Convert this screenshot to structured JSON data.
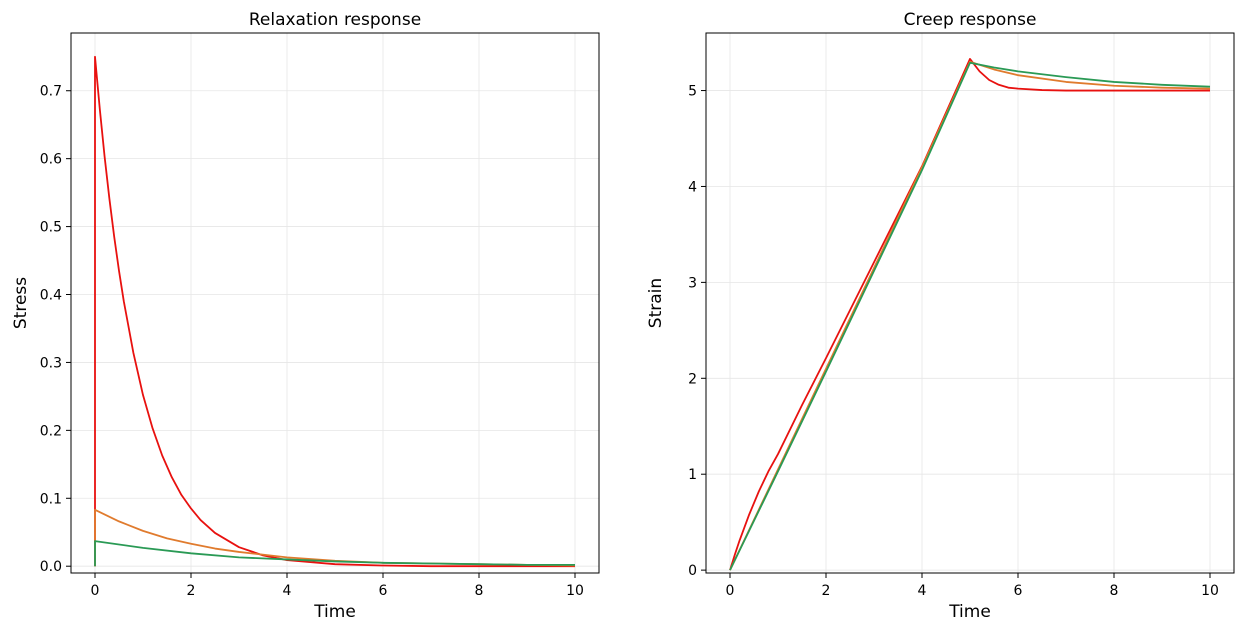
{
  "chart_data": [
    {
      "type": "line",
      "title": "Relaxation response",
      "xlabel": "Time",
      "ylabel": "Stress",
      "xlim": [
        -0.5,
        10.5
      ],
      "ylim": [
        -0.01,
        0.785
      ],
      "xticks": [
        0,
        2,
        4,
        6,
        8,
        10
      ],
      "yticks": [
        0.0,
        0.1,
        0.2,
        0.3,
        0.4,
        0.5,
        0.6,
        0.7
      ],
      "grid": true,
      "series": [
        {
          "color": "#e8110f",
          "x": [
            0,
            0,
            0.1,
            0.2,
            0.3,
            0.4,
            0.5,
            0.6,
            0.8,
            1.0,
            1.2,
            1.4,
            1.6,
            1.8,
            2.0,
            2.2,
            2.5,
            3.0,
            3.5,
            4.0,
            5.0,
            6.0,
            7.0,
            8.0,
            9.0,
            10.0
          ],
          "y": [
            0,
            0.75,
            0.673,
            0.603,
            0.541,
            0.485,
            0.435,
            0.39,
            0.314,
            0.252,
            0.203,
            0.163,
            0.131,
            0.105,
            0.085,
            0.068,
            0.049,
            0.028,
            0.016,
            0.009,
            0.003,
            0.001,
            0.0,
            0.0,
            0.0,
            0.0
          ]
        },
        {
          "color": "#e07b2e",
          "x": [
            0,
            0,
            0.5,
            1.0,
            1.5,
            2.0,
            2.5,
            3.0,
            4.0,
            5.0,
            6.0,
            7.0,
            8.0,
            9.0,
            10.0
          ],
          "y": [
            0,
            0.083,
            0.066,
            0.052,
            0.041,
            0.033,
            0.026,
            0.021,
            0.013,
            0.008,
            0.005,
            0.004,
            0.003,
            0.002,
            0.001
          ]
        },
        {
          "color": "#2a9a55",
          "x": [
            0,
            0,
            1.0,
            2.0,
            3.0,
            4.0,
            5.0,
            6.0,
            7.0,
            8.0,
            9.0,
            10.0
          ],
          "y": [
            0,
            0.037,
            0.027,
            0.019,
            0.013,
            0.01,
            0.007,
            0.005,
            0.004,
            0.003,
            0.002,
            0.002
          ]
        }
      ]
    },
    {
      "type": "line",
      "title": "Creep response",
      "xlabel": "Time",
      "ylabel": "Strain",
      "xlim": [
        -0.5,
        10.5
      ],
      "ylim": [
        -0.03,
        5.6
      ],
      "xticks": [
        0,
        2,
        4,
        6,
        8,
        10
      ],
      "yticks": [
        0,
        1,
        2,
        3,
        4,
        5
      ],
      "grid": true,
      "series": [
        {
          "color": "#e8110f",
          "x": [
            0,
            0.1,
            0.2,
            0.4,
            0.6,
            0.8,
            1.0,
            1.5,
            2.0,
            3.0,
            4.0,
            5.0,
            5.2,
            5.4,
            5.6,
            5.8,
            6.0,
            6.5,
            7.0,
            8.0,
            9.0,
            10.0
          ],
          "y": [
            0,
            0.16,
            0.31,
            0.58,
            0.82,
            1.03,
            1.21,
            1.72,
            2.21,
            3.21,
            4.21,
            5.33,
            5.2,
            5.11,
            5.06,
            5.03,
            5.02,
            5.005,
            5.0,
            5.0,
            5.0,
            5.0
          ]
        },
        {
          "color": "#e07b2e",
          "x": [
            0,
            1,
            2,
            3,
            4,
            5,
            5.5,
            6,
            7,
            8,
            9,
            10
          ],
          "y": [
            0,
            1.05,
            2.1,
            3.15,
            4.2,
            5.3,
            5.22,
            5.16,
            5.09,
            5.05,
            5.03,
            5.02
          ]
        },
        {
          "color": "#2a9a55",
          "x": [
            0,
            1,
            2,
            3,
            4,
            5,
            5.5,
            6,
            7,
            8,
            9,
            10
          ],
          "y": [
            0,
            1.03,
            2.07,
            3.12,
            4.17,
            5.29,
            5.24,
            5.2,
            5.14,
            5.09,
            5.06,
            5.04
          ]
        }
      ]
    }
  ]
}
